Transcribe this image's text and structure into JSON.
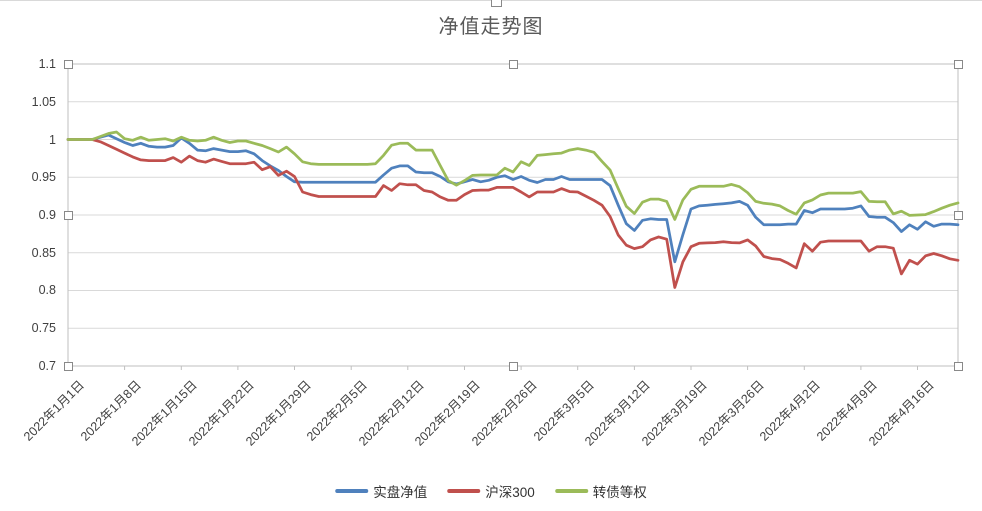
{
  "chart": {
    "title": "净值走势图"
  },
  "chart_data": {
    "type": "line",
    "title": "净值走势图",
    "grid": true,
    "legend_position": "bottom",
    "ylim": [
      0.7,
      1.1
    ],
    "ytick_labels": [
      "1.1",
      "1.05",
      "1",
      "0.95",
      "0.9",
      "0.85",
      "0.8",
      "0.75",
      "0.7"
    ],
    "ytick_values": [
      1.1,
      1.05,
      1.0,
      0.95,
      0.9,
      0.85,
      0.8,
      0.75,
      0.7
    ],
    "n_points": 111,
    "x_tick_step": 7,
    "x_tick_labels": [
      "2022年1月1日",
      "2022年1月8日",
      "2022年1月15日",
      "2022年1月22日",
      "2022年1月29日",
      "2022年2月5日",
      "2022年2月12日",
      "2022年2月19日",
      "2022年2月26日",
      "2022年3月5日",
      "2022年3月12日",
      "2022年3月19日",
      "2022年3月26日",
      "2022年4月2日",
      "2022年4月9日",
      "2022年4月16日"
    ],
    "series": [
      {
        "name": "实盘净值",
        "color": "#4F81BD",
        "values": [
          1.0,
          1.0,
          1.0,
          1.0,
          1.003,
          1.006,
          1.001,
          0.996,
          0.992,
          0.995,
          0.991,
          0.99,
          0.99,
          0.992,
          1.002,
          0.995,
          0.986,
          0.985,
          0.988,
          0.986,
          0.984,
          0.984,
          0.985,
          0.981,
          0.972,
          0.965,
          0.959,
          0.951,
          0.944,
          0.9435,
          0.9435,
          0.9435,
          0.9435,
          0.9435,
          0.9435,
          0.9435,
          0.9435,
          0.9435,
          0.9435,
          0.953,
          0.962,
          0.965,
          0.965,
          0.957,
          0.956,
          0.956,
          0.951,
          0.944,
          0.941,
          0.944,
          0.947,
          0.944,
          0.946,
          0.95,
          0.952,
          0.947,
          0.951,
          0.946,
          0.943,
          0.947,
          0.947,
          0.951,
          0.947,
          0.947,
          0.947,
          0.947,
          0.947,
          0.939,
          0.913,
          0.8885,
          0.8795,
          0.893,
          0.895,
          0.894,
          0.894,
          0.838,
          0.874,
          0.908,
          0.912,
          0.913,
          0.914,
          0.915,
          0.916,
          0.918,
          0.913,
          0.897,
          0.887,
          0.887,
          0.887,
          0.888,
          0.888,
          0.906,
          0.903,
          0.908,
          0.908,
          0.908,
          0.908,
          0.909,
          0.912,
          0.898,
          0.897,
          0.897,
          0.89,
          0.878,
          0.887,
          0.881,
          0.891,
          0.885,
          0.888,
          0.888,
          0.887
        ]
      },
      {
        "name": "沪深300",
        "color": "#C0504D",
        "values": [
          1.0,
          1.0,
          1.0,
          1.0,
          0.997,
          0.992,
          0.987,
          0.982,
          0.977,
          0.973,
          0.972,
          0.972,
          0.972,
          0.976,
          0.97,
          0.978,
          0.972,
          0.97,
          0.974,
          0.971,
          0.968,
          0.968,
          0.968,
          0.97,
          0.96,
          0.964,
          0.9525,
          0.958,
          0.951,
          0.9305,
          0.927,
          0.9245,
          0.9245,
          0.9245,
          0.9245,
          0.9245,
          0.9245,
          0.9245,
          0.9245,
          0.939,
          0.9325,
          0.9415,
          0.94,
          0.94,
          0.9325,
          0.9305,
          0.924,
          0.9195,
          0.9195,
          0.927,
          0.9325,
          0.933,
          0.933,
          0.9365,
          0.9365,
          0.9365,
          0.9305,
          0.924,
          0.9305,
          0.9305,
          0.9305,
          0.935,
          0.931,
          0.9305,
          0.925,
          0.9195,
          0.913,
          0.898,
          0.8735,
          0.86,
          0.8555,
          0.858,
          0.867,
          0.871,
          0.868,
          0.804,
          0.838,
          0.858,
          0.8625,
          0.863,
          0.8635,
          0.8645,
          0.8635,
          0.863,
          0.867,
          0.859,
          0.845,
          0.8423,
          0.841,
          0.836,
          0.83,
          0.862,
          0.852,
          0.864,
          0.8655,
          0.8655,
          0.8655,
          0.8655,
          0.8655,
          0.852,
          0.858,
          0.858,
          0.856,
          0.822,
          0.84,
          0.835,
          0.846,
          0.849,
          0.846,
          0.842,
          0.84
        ]
      },
      {
        "name": "转债等权",
        "color": "#9BBB59",
        "values": [
          1.0,
          1.0,
          1.0,
          1.0,
          1.004,
          1.008,
          1.01,
          1.001,
          0.999,
          1.003,
          0.999,
          1.0,
          1.001,
          0.998,
          1.003,
          0.999,
          0.998,
          0.999,
          1.003,
          0.999,
          0.996,
          0.998,
          0.998,
          0.995,
          0.992,
          0.988,
          0.9835,
          0.99,
          0.981,
          0.9705,
          0.968,
          0.967,
          0.967,
          0.967,
          0.967,
          0.967,
          0.967,
          0.967,
          0.968,
          0.979,
          0.9925,
          0.995,
          0.995,
          0.986,
          0.986,
          0.986,
          0.9655,
          0.9455,
          0.9395,
          0.9455,
          0.9525,
          0.953,
          0.953,
          0.953,
          0.962,
          0.957,
          0.9705,
          0.9655,
          0.979,
          0.98,
          0.981,
          0.982,
          0.986,
          0.988,
          0.986,
          0.983,
          0.971,
          0.9595,
          0.935,
          0.9115,
          0.902,
          0.917,
          0.921,
          0.921,
          0.918,
          0.894,
          0.92,
          0.934,
          0.938,
          0.938,
          0.938,
          0.938,
          0.9405,
          0.9375,
          0.9295,
          0.918,
          0.9155,
          0.9145,
          0.912,
          0.906,
          0.901,
          0.916,
          0.92,
          0.9265,
          0.929,
          0.929,
          0.929,
          0.929,
          0.931,
          0.918,
          0.9175,
          0.9175,
          0.9015,
          0.905,
          0.8995,
          0.9,
          0.9005,
          0.9045,
          0.909,
          0.913,
          0.916
        ]
      }
    ],
    "colors": {
      "gridline": "#d9d9d9",
      "plot_border": "#bfbfbf",
      "axis_text": "#404040",
      "title_text": "#595959"
    }
  }
}
